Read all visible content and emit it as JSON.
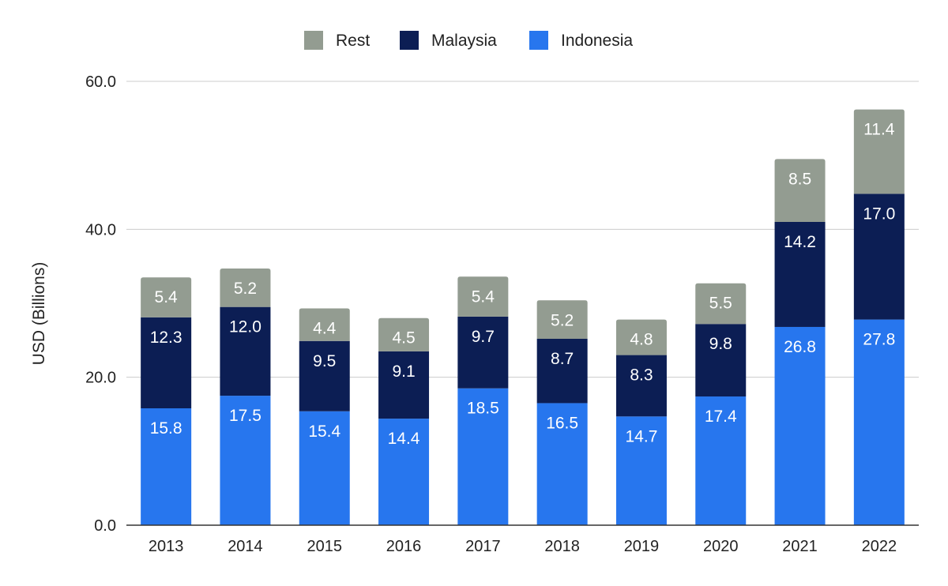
{
  "chart_data": {
    "type": "bar",
    "stacked": true,
    "title": "",
    "xlabel": "",
    "ylabel": "USD (Billions)",
    "ylim": [
      0,
      60
    ],
    "yticks": [
      "0.0",
      "20.0",
      "40.0",
      "60.0"
    ],
    "yticks_values": [
      0,
      20,
      40,
      60
    ],
    "grid": true,
    "legend_position": "top-center",
    "categories": [
      "2013",
      "2014",
      "2015",
      "2016",
      "2017",
      "2018",
      "2019",
      "2020",
      "2021",
      "2022"
    ],
    "series": [
      {
        "name": "Indonesia",
        "color": "#2776ee",
        "label_color": "#ffffff",
        "values": [
          15.8,
          17.5,
          15.4,
          14.4,
          18.5,
          16.5,
          14.7,
          17.4,
          26.8,
          27.8
        ],
        "labels": [
          "15.8",
          "17.5",
          "15.4",
          "14.4",
          "18.5",
          "16.5",
          "14.7",
          "17.4",
          "26.8",
          "27.8"
        ]
      },
      {
        "name": "Malaysia",
        "color": "#0c1e54",
        "label_color": "#ffffff",
        "values": [
          12.3,
          12.0,
          9.5,
          9.1,
          9.7,
          8.7,
          8.3,
          9.8,
          14.2,
          17.0
        ],
        "labels": [
          "12.3",
          "12.0",
          "9.5",
          "9.1",
          "9.7",
          "8.7",
          "8.3",
          "9.8",
          "14.2",
          "17.0"
        ]
      },
      {
        "name": "Rest",
        "color": "#939c91",
        "label_color": "#ffffff",
        "values": [
          5.4,
          5.2,
          4.4,
          4.5,
          5.4,
          5.2,
          4.8,
          5.5,
          8.5,
          11.4
        ],
        "labels": [
          "5.4",
          "5.2",
          "4.4",
          "4.5",
          "5.4",
          "5.2",
          "4.8",
          "5.5",
          "8.5",
          "11.4"
        ]
      }
    ],
    "legend_order": [
      "Rest",
      "Malaysia",
      "Indonesia"
    ]
  }
}
